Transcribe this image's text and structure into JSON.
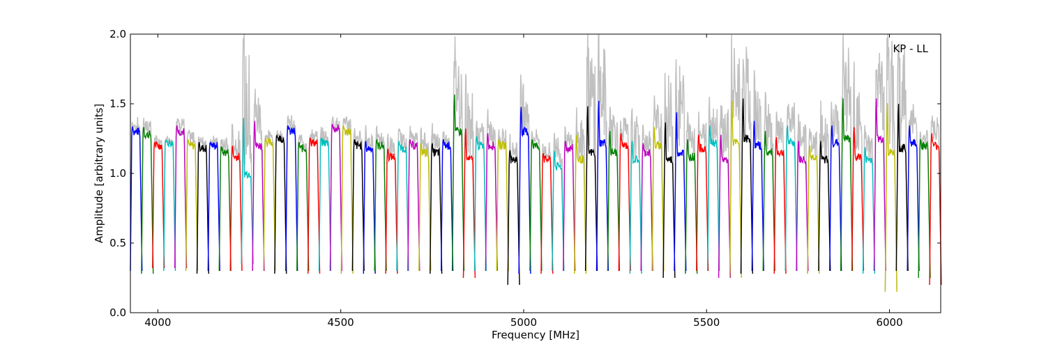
{
  "chart_data": {
    "type": "line",
    "title": "",
    "annotation": "KP - LL",
    "xlabel": "Frequency [MHz]",
    "ylabel": "Amplitude [arbitrary units]",
    "xlim": [
      3925,
      6140
    ],
    "ylim": [
      0.0,
      2.0
    ],
    "xticks": [
      4000,
      4500,
      5000,
      5500,
      6000
    ],
    "xtick_labels": [
      "4000",
      "4500",
      "5000",
      "5500",
      "6000"
    ],
    "yticks": [
      0.0,
      0.5,
      1.0,
      1.5,
      2.0
    ],
    "ytick_labels": [
      "0.0",
      "0.5",
      "1.0",
      "1.5",
      "2.0"
    ],
    "grid": false,
    "legend": "none",
    "channel_width_mhz": 32,
    "colors": [
      "#0000ff",
      "#008000",
      "#ff0000",
      "#00bfbf",
      "#bf00bf",
      "#bfbf00",
      "#000000"
    ],
    "background_color": "#c0c0c0",
    "series": [
      {
        "values": [
          1.3,
          1.28,
          1.2,
          1.22,
          1.3,
          1.2,
          1.18,
          1.2,
          1.15,
          1.12,
          1.0,
          1.2,
          1.22,
          1.25,
          1.3,
          1.18,
          1.22,
          1.22,
          1.32,
          1.3,
          1.2,
          1.18,
          1.2,
          1.12,
          1.18,
          1.2,
          1.15,
          1.15,
          1.2,
          1.3,
          1.1,
          1.2,
          1.2,
          1.2,
          1.1,
          1.3,
          1.2,
          1.1,
          1.05,
          1.18,
          1.1,
          1.15,
          1.22,
          1.15,
          1.2,
          1.1,
          1.15,
          1.2,
          1.1,
          1.15,
          1.12,
          1.18,
          1.22,
          1.1,
          1.22,
          1.25,
          1.2,
          1.15,
          1.15,
          1.22,
          1.1,
          1.12,
          1.1,
          1.22,
          1.25,
          1.12,
          1.1,
          1.25,
          1.15,
          1.18,
          1.22,
          1.2,
          1.2
        ]
      },
      {
        "values": [
          1.38,
          1.4,
          1.25,
          1.26,
          1.4,
          1.3,
          1.28,
          1.25,
          1.25,
          1.3,
          1.9,
          1.6,
          1.3,
          1.3,
          1.4,
          1.28,
          1.3,
          1.3,
          1.4,
          1.4,
          1.3,
          1.3,
          1.3,
          1.25,
          1.3,
          1.3,
          1.3,
          1.3,
          1.3,
          1.9,
          1.6,
          1.35,
          1.4,
          1.3,
          1.25,
          1.7,
          1.3,
          1.2,
          1.3,
          1.3,
          1.5,
          1.9,
          1.9,
          1.5,
          1.4,
          1.4,
          1.3,
          1.5,
          1.7,
          1.8,
          1.4,
          1.4,
          1.5,
          1.5,
          1.9,
          1.9,
          1.6,
          1.5,
          1.4,
          1.5,
          1.4,
          1.3,
          1.4,
          1.5,
          1.9,
          1.6,
          1.3,
          1.9,
          1.95,
          1.9,
          1.5,
          1.3,
          1.4
        ]
      },
      {
        "values": [
          0.3,
          0.28,
          0.32,
          0.3,
          0.32,
          0.3,
          0.28,
          0.3,
          0.3,
          0.3,
          0.35,
          0.3,
          0.3,
          0.28,
          0.3,
          0.3,
          0.28,
          0.3,
          0.3,
          0.28,
          0.3,
          0.28,
          0.3,
          0.28,
          0.3,
          0.3,
          0.3,
          0.28,
          0.3,
          0.3,
          0.25,
          0.3,
          0.3,
          0.3,
          0.2,
          0.28,
          0.3,
          0.28,
          0.3,
          0.3,
          0.28,
          0.3,
          0.3,
          0.3,
          0.3,
          0.28,
          0.3,
          0.3,
          0.25,
          0.3,
          0.28,
          0.3,
          0.3,
          0.25,
          0.25,
          0.28,
          0.3,
          0.3,
          0.28,
          0.3,
          0.3,
          0.28,
          0.3,
          0.3,
          0.3,
          0.3,
          0.28,
          0.3,
          0.15,
          0.3,
          0.3,
          0.25,
          0.2
        ]
      }
    ]
  }
}
